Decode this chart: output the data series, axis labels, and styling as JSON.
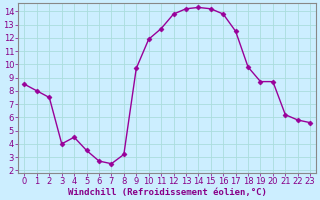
{
  "x": [
    0,
    1,
    2,
    3,
    4,
    5,
    6,
    7,
    8,
    9,
    10,
    11,
    12,
    13,
    14,
    15,
    16,
    17,
    18,
    19,
    20,
    21,
    22,
    23
  ],
  "y": [
    8.5,
    8.0,
    7.5,
    4.0,
    4.5,
    3.5,
    2.7,
    2.5,
    3.2,
    9.7,
    11.9,
    12.7,
    13.8,
    14.2,
    14.3,
    14.2,
    13.8,
    12.5,
    9.8,
    8.7,
    8.7,
    6.2,
    5.8,
    5.6
  ],
  "line_color": "#990099",
  "marker": "D",
  "marker_size": 2.5,
  "bg_color": "#cceeff",
  "grid_color": "#aadddd",
  "xlabel": "Windchill (Refroidissement éolien,°C)",
  "xlim": [
    -0.5,
    23.5
  ],
  "ylim": [
    1.8,
    14.6
  ],
  "yticks": [
    2,
    3,
    4,
    5,
    6,
    7,
    8,
    9,
    10,
    11,
    12,
    13,
    14
  ],
  "xticks": [
    0,
    1,
    2,
    3,
    4,
    5,
    6,
    7,
    8,
    9,
    10,
    11,
    12,
    13,
    14,
    15,
    16,
    17,
    18,
    19,
    20,
    21,
    22,
    23
  ],
  "xlabel_color": "#880088",
  "tick_color": "#880088",
  "spine_color": "#888888",
  "xlabel_fontsize": 6.5,
  "tick_fontsize": 6.0
}
